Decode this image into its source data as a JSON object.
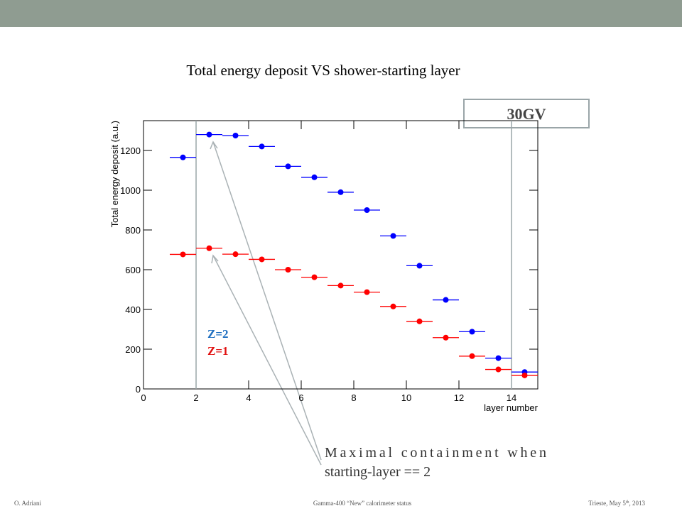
{
  "chart_data": {
    "type": "scatter",
    "title": "Total energy deposit VS shower-starting layer",
    "x_label": "layer number",
    "y_label": "Total energy deposit (a.u.)",
    "xlim": [
      0,
      15
    ],
    "xticks": [
      0,
      2,
      4,
      6,
      8,
      10,
      12,
      14
    ],
    "ylim": [
      0,
      1350
    ],
    "yticks": [
      0,
      200,
      400,
      600,
      800,
      1000,
      1200
    ],
    "x": [
      1.5,
      2.5,
      3.5,
      4.5,
      5.5,
      6.5,
      7.5,
      8.5,
      9.5,
      10.5,
      11.5,
      12.5,
      13.5,
      14.5
    ],
    "xerr": 0.5,
    "series": [
      {
        "name": "Z=2",
        "color": "#0000ff",
        "label_color": "#1f6fc0",
        "values": [
          1165,
          1280,
          1275,
          1220,
          1120,
          1065,
          990,
          900,
          770,
          620,
          448,
          288,
          155,
          85
        ]
      },
      {
        "name": "Z=1",
        "color": "#ff0000",
        "label_color": "#e01010",
        "values": [
          677,
          708,
          678,
          652,
          600,
          562,
          520,
          487,
          415,
          340,
          258,
          165,
          98,
          68
        ]
      }
    ],
    "vlines": [
      2,
      14
    ],
    "box_label": "30GV",
    "annotation": [
      "Maximal containment when",
      "starting-layer == 2"
    ]
  },
  "footer": {
    "left": "O. Adriani",
    "center": "Gamma-400 “New” calorimeter status",
    "right": [
      "Trieste, May 5",
      "th",
      ", 2013"
    ]
  }
}
